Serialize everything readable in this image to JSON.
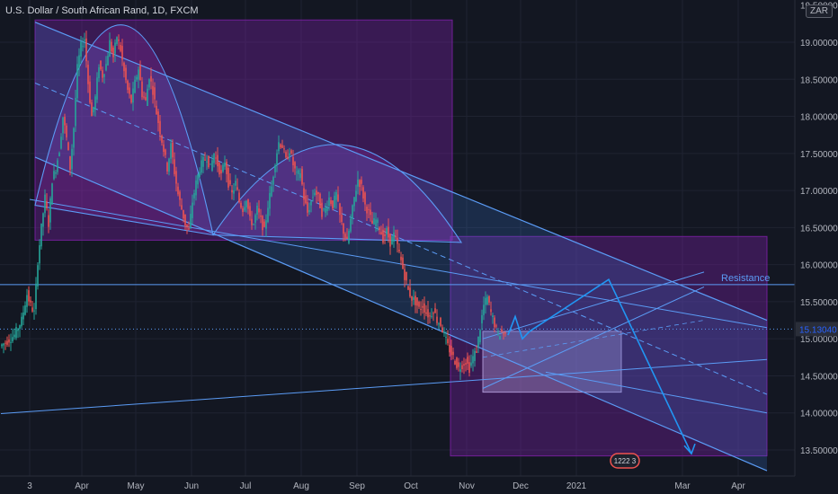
{
  "header": {
    "title": "U.S. Dollar / South African Rand, 1D, FXCM",
    "currency_badge": "ZAR"
  },
  "chart_data": {
    "type": "candlestick",
    "title": "U.S. Dollar / South African Rand, 1D, FXCM",
    "y_ticks": [
      "19.00000",
      "18.50000",
      "18.00000",
      "17.50000",
      "17.00000",
      "16.50000",
      "16.00000",
      "15.50000",
      "15.00000",
      "14.50000",
      "14.00000",
      "13.50000"
    ],
    "y_partial_top": "19.50000",
    "ylim": [
      13.3,
      19.55
    ],
    "x_ticks": [
      {
        "label": "3",
        "d": 0
      },
      {
        "label": "Apr",
        "d": 29
      },
      {
        "label": "May",
        "d": 59
      },
      {
        "label": "Jun",
        "d": 90
      },
      {
        "label": "Jul",
        "d": 120
      },
      {
        "label": "Aug",
        "d": 151
      },
      {
        "label": "Sep",
        "d": 182
      },
      {
        "label": "Oct",
        "d": 212
      },
      {
        "label": "Nov",
        "d": 243
      },
      {
        "label": "Dec",
        "d": 273
      },
      {
        "label": "2021",
        "d": 304
      },
      {
        "label": "Mar",
        "d": 363
      },
      {
        "label": "Apr",
        "d": 394
      }
    ],
    "last_price": "15.13040",
    "resistance_label": "Resistance",
    "resistance_level": 15.73,
    "event_badge": "1222 3",
    "price_path": [
      [
        -16,
        14.9
      ],
      [
        -12,
        14.97
      ],
      [
        -8,
        15.05
      ],
      [
        -4,
        15.25
      ],
      [
        -1,
        15.6
      ],
      [
        1,
        15.45
      ],
      [
        3,
        15.35
      ],
      [
        5,
        16.05
      ],
      [
        7,
        16.5
      ],
      [
        9,
        16.9
      ],
      [
        11,
        16.55
      ],
      [
        13,
        17.15
      ],
      [
        15,
        17.3
      ],
      [
        17,
        17.55
      ],
      [
        19,
        18.0
      ],
      [
        21,
        17.7
      ],
      [
        23,
        17.3
      ],
      [
        25,
        17.85
      ],
      [
        27,
        18.65
      ],
      [
        29,
        18.95
      ],
      [
        31,
        19.05
      ],
      [
        33,
        18.45
      ],
      [
        35,
        18.0
      ],
      [
        37,
        18.25
      ],
      [
        39,
        18.7
      ],
      [
        41,
        18.55
      ],
      [
        43,
        18.7
      ],
      [
        45,
        19.0
      ],
      [
        47,
        18.8
      ],
      [
        49,
        19.08
      ],
      [
        51,
        18.9
      ],
      [
        53,
        18.6
      ],
      [
        55,
        18.35
      ],
      [
        57,
        18.2
      ],
      [
        59,
        18.45
      ],
      [
        61,
        18.65
      ],
      [
        63,
        18.3
      ],
      [
        65,
        18.2
      ],
      [
        67,
        18.55
      ],
      [
        69,
        18.35
      ],
      [
        71,
        18.05
      ],
      [
        73,
        17.8
      ],
      [
        75,
        17.55
      ],
      [
        77,
        17.3
      ],
      [
        79,
        17.6
      ],
      [
        81,
        17.25
      ],
      [
        83,
        16.95
      ],
      [
        85,
        16.75
      ],
      [
        87,
        16.55
      ],
      [
        89,
        16.45
      ],
      [
        91,
        16.85
      ],
      [
        93,
        17.1
      ],
      [
        95,
        17.3
      ],
      [
        97,
        17.4
      ],
      [
        99,
        17.45
      ],
      [
        101,
        17.3
      ],
      [
        103,
        17.5
      ],
      [
        105,
        17.35
      ],
      [
        107,
        17.2
      ],
      [
        109,
        17.4
      ],
      [
        111,
        17.1
      ],
      [
        113,
        16.95
      ],
      [
        115,
        17.1
      ],
      [
        117,
        16.85
      ],
      [
        119,
        16.75
      ],
      [
        121,
        16.9
      ],
      [
        123,
        16.6
      ],
      [
        125,
        16.55
      ],
      [
        127,
        16.75
      ],
      [
        129,
        16.6
      ],
      [
        131,
        16.45
      ],
      [
        133,
        16.8
      ],
      [
        135,
        17.05
      ],
      [
        137,
        17.4
      ],
      [
        139,
        17.65
      ],
      [
        141,
        17.6
      ],
      [
        143,
        17.4
      ],
      [
        145,
        17.55
      ],
      [
        147,
        17.35
      ],
      [
        149,
        17.2
      ],
      [
        151,
        17.25
      ],
      [
        153,
        16.9
      ],
      [
        155,
        16.7
      ],
      [
        157,
        16.85
      ],
      [
        159,
        17.0
      ],
      [
        161,
        16.9
      ],
      [
        163,
        16.7
      ],
      [
        165,
        16.75
      ],
      [
        167,
        16.9
      ],
      [
        169,
        16.8
      ],
      [
        171,
        16.95
      ],
      [
        173,
        16.65
      ],
      [
        175,
        16.45
      ],
      [
        177,
        16.3
      ],
      [
        179,
        16.6
      ],
      [
        181,
        16.9
      ],
      [
        183,
        17.15
      ],
      [
        185,
        17.05
      ],
      [
        187,
        16.8
      ],
      [
        189,
        16.7
      ],
      [
        191,
        16.55
      ],
      [
        193,
        16.6
      ],
      [
        195,
        16.5
      ],
      [
        197,
        16.35
      ],
      [
        199,
        16.45
      ],
      [
        201,
        16.3
      ],
      [
        203,
        16.4
      ],
      [
        205,
        16.25
      ],
      [
        207,
        16.05
      ],
      [
        209,
        15.85
      ],
      [
        211,
        15.65
      ],
      [
        213,
        15.55
      ],
      [
        215,
        15.5
      ],
      [
        217,
        15.4
      ],
      [
        219,
        15.45
      ],
      [
        221,
        15.35
      ],
      [
        223,
        15.3
      ],
      [
        225,
        15.4
      ],
      [
        227,
        15.25
      ],
      [
        229,
        15.2
      ],
      [
        231,
        15.05
      ],
      [
        233,
        14.9
      ],
      [
        235,
        14.8
      ],
      [
        237,
        14.7
      ],
      [
        239,
        14.6
      ],
      [
        241,
        14.65
      ],
      [
        243,
        14.7
      ],
      [
        245,
        14.6
      ],
      [
        247,
        14.75
      ],
      [
        249,
        14.85
      ],
      [
        251,
        15.15
      ],
      [
        253,
        15.45
      ],
      [
        255,
        15.55
      ],
      [
        257,
        15.35
      ],
      [
        259,
        15.2
      ],
      [
        261,
        15.05
      ],
      [
        263,
        15.1
      ],
      [
        265,
        15.05
      ]
    ],
    "projection_path": [
      [
        266,
        15.05
      ],
      [
        270,
        15.3
      ],
      [
        274,
        15.0
      ],
      [
        278,
        15.1
      ],
      [
        322,
        15.8
      ],
      [
        368,
        13.45
      ]
    ],
    "regions": [
      {
        "x0": 3,
        "x1": 235,
        "y0": 16.33,
        "y1": 19.3,
        "color": "#7a1fa2"
      },
      {
        "x0": 234,
        "x1": 410,
        "y0": 13.42,
        "y1": 16.38,
        "color": "#7a1fa2"
      },
      {
        "x0": 252,
        "x1": 329,
        "y0": 14.28,
        "y1": 15.1,
        "color": "#b39ddb"
      }
    ],
    "arcs": [
      {
        "from": [
          3,
          16.8
        ],
        "to": [
          102,
          16.4
        ],
        "peak": 19.23
      },
      {
        "from": [
          102,
          16.4
        ],
        "to": [
          240,
          16.3
        ],
        "peak": 17.62
      }
    ],
    "channel_lines": [
      {
        "from": [
          3,
          19.27
        ],
        "to": [
          410,
          15.25
        ],
        "color": "#5b9cf6",
        "width": 1.2
      },
      {
        "from": [
          3,
          17.45
        ],
        "to": [
          410,
          13.22
        ],
        "color": "#5b9cf6",
        "width": 1.2
      },
      {
        "from": [
          3,
          18.45
        ],
        "to": [
          410,
          14.25
        ],
        "color": "#5b9cf6",
        "width": 1.0,
        "dash": "6,4"
      },
      {
        "from": [
          0,
          16.88
        ],
        "to": [
          410,
          15.15
        ],
        "color": "#5b9cf6",
        "width": 1.0
      },
      {
        "from": [
          -16,
          13.99
        ],
        "to": [
          410,
          14.72
        ],
        "color": "#5b9cf6",
        "width": 1.0
      },
      {
        "from": [
          252,
          14.33
        ],
        "to": [
          375,
          15.7
        ],
        "color": "#5b9cf6",
        "width": 1.0
      },
      {
        "from": [
          252,
          15.0
        ],
        "to": [
          375,
          15.9
        ],
        "color": "#5b9cf6",
        "width": 1.0
      },
      {
        "from": [
          252,
          14.75
        ],
        "to": [
          375,
          15.25
        ],
        "color": "#5b9cf6",
        "width": 0.8,
        "dash": "5,4"
      },
      {
        "from": [
          287,
          14.55
        ],
        "to": [
          410,
          14.0
        ],
        "color": "#5b9cf6",
        "width": 1.0
      }
    ],
    "colors": {
      "background": "#131722",
      "up": "#26a69a",
      "down": "#ef5350",
      "line": "#5b9cf6",
      "projection": "#2196f3",
      "last_price_bg": "#2a2e39",
      "last_price_text": "#2962ff",
      "badge": "#ef5350",
      "grid": "#1f2331"
    }
  }
}
